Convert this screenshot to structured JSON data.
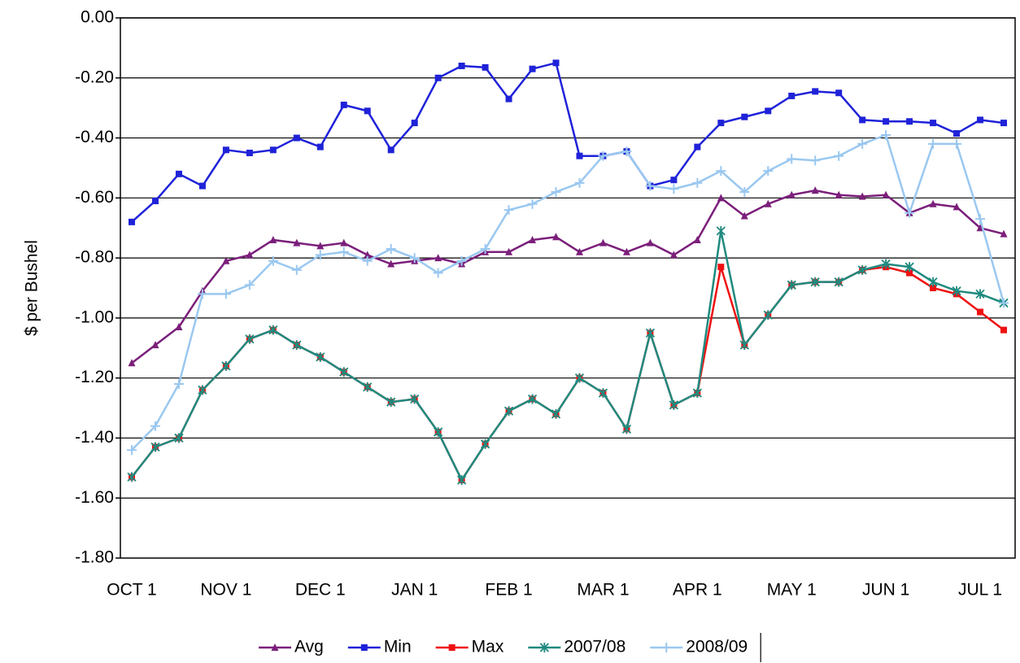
{
  "chart_data": {
    "type": "line",
    "y_label": "$ per Bushel",
    "categories": [
      "OCT 1",
      null,
      null,
      null,
      "NOV 1",
      null,
      null,
      null,
      "DEC 1",
      null,
      null,
      null,
      "JAN 1",
      null,
      null,
      null,
      "FEB 1",
      null,
      null,
      null,
      "MAR 1",
      null,
      null,
      null,
      "APR 1",
      null,
      null,
      null,
      "MAY 1",
      null,
      null,
      null,
      "JUN 1",
      null,
      null,
      null,
      "JUL 1",
      null
    ],
    "ylim": [
      -1.8,
      0
    ],
    "yticks": [
      {
        "value": 0,
        "label": "0.00"
      },
      {
        "value": -0.2,
        "label": "-0.20"
      },
      {
        "value": -0.4,
        "label": "-0.40"
      },
      {
        "value": -0.6,
        "label": "-0.60"
      },
      {
        "value": -0.8,
        "label": "-0.80"
      },
      {
        "value": -1.0,
        "label": "-1.00"
      },
      {
        "value": -1.2,
        "label": "-1.20"
      },
      {
        "value": -1.4,
        "label": "-1.40"
      },
      {
        "value": -1.6,
        "label": "-1.60"
      },
      {
        "value": -1.8,
        "label": "-1.80"
      }
    ],
    "grid": true,
    "legend": "bottom",
    "series": [
      {
        "name": "Avg",
        "color": "#7b1f7b",
        "marker": "triangle",
        "values": [
          -1.15,
          -1.09,
          -1.03,
          -0.91,
          -0.81,
          -0.79,
          -0.74,
          -0.75,
          -0.76,
          -0.75,
          -0.79,
          -0.82,
          -0.81,
          -0.8,
          -0.82,
          -0.78,
          -0.78,
          -0.74,
          -0.73,
          -0.78,
          -0.75,
          -0.78,
          -0.75,
          -0.79,
          -0.74,
          -0.6,
          -0.66,
          -0.62,
          -0.59,
          -0.575,
          -0.59,
          -0.595,
          -0.59,
          -0.65,
          -0.62,
          -0.63,
          -0.7,
          -0.72
        ]
      },
      {
        "name": "Min",
        "color": "#1f22d8",
        "marker": "square",
        "values": [
          -0.68,
          -0.61,
          -0.52,
          -0.56,
          -0.44,
          -0.45,
          -0.44,
          -0.4,
          -0.43,
          -0.29,
          -0.31,
          -0.44,
          -0.35,
          -0.2,
          -0.16,
          -0.165,
          -0.27,
          -0.17,
          -0.15,
          -0.46,
          -0.46,
          -0.445,
          -0.56,
          -0.54,
          -0.43,
          -0.35,
          -0.33,
          -0.31,
          -0.26,
          -0.245,
          -0.25,
          -0.34,
          -0.345,
          -0.345,
          -0.35,
          -0.385,
          -0.34,
          -0.35
        ]
      },
      {
        "name": "Max",
        "color": "#ee1111",
        "marker": "square",
        "values": [
          -1.53,
          -1.43,
          -1.4,
          -1.24,
          -1.16,
          -1.07,
          -1.04,
          -1.09,
          -1.13,
          -1.18,
          -1.23,
          -1.28,
          -1.27,
          -1.38,
          -1.54,
          -1.42,
          -1.31,
          -1.27,
          -1.32,
          -1.2,
          -1.25,
          -1.37,
          -1.05,
          -1.29,
          -1.25,
          -0.83,
          -1.09,
          -0.99,
          -0.89,
          -0.88,
          -0.88,
          -0.84,
          -0.83,
          -0.85,
          -0.9,
          -0.92,
          -0.98,
          -1.04
        ]
      },
      {
        "name": "2007/08",
        "color": "#1f8a7f",
        "marker": "star",
        "values": [
          -1.53,
          -1.43,
          -1.4,
          -1.24,
          -1.16,
          -1.07,
          -1.04,
          -1.09,
          -1.13,
          -1.18,
          -1.23,
          -1.28,
          -1.27,
          -1.38,
          -1.54,
          -1.42,
          -1.31,
          -1.27,
          -1.32,
          -1.2,
          -1.25,
          -1.37,
          -1.05,
          -1.29,
          -1.25,
          -0.71,
          -1.09,
          -0.99,
          -0.89,
          -0.88,
          -0.88,
          -0.84,
          -0.82,
          -0.83,
          -0.88,
          -0.91,
          -0.92,
          -0.95
        ]
      },
      {
        "name": "2008/09",
        "color": "#9ac8f0",
        "marker": "plus",
        "values": [
          -1.44,
          -1.36,
          -1.22,
          -0.92,
          -0.92,
          -0.89,
          -0.81,
          -0.84,
          -0.79,
          -0.78,
          -0.81,
          -0.77,
          -0.8,
          -0.85,
          -0.81,
          -0.77,
          -0.64,
          -0.62,
          -0.58,
          -0.55,
          -0.46,
          -0.445,
          -0.56,
          -0.57,
          -0.55,
          -0.51,
          -0.58,
          -0.51,
          -0.47,
          -0.475,
          -0.46,
          -0.42,
          -0.39,
          -0.65,
          -0.42,
          -0.42,
          -0.67,
          -0.95
        ]
      }
    ]
  }
}
